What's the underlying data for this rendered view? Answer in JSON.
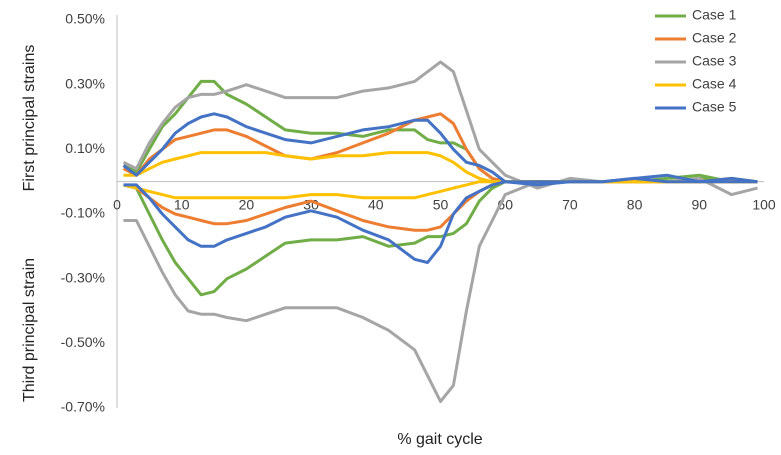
{
  "chart_data": {
    "type": "line",
    "x_label": "% gait cycle",
    "y_label_upper": "First principal strains",
    "y_label_lower": "Third principal strain",
    "x": [
      1,
      3,
      5,
      7,
      9,
      11,
      13,
      15,
      17,
      20,
      23,
      26,
      30,
      34,
      38,
      42,
      46,
      48,
      50,
      52,
      54,
      56,
      58,
      60,
      65,
      70,
      75,
      80,
      85,
      90,
      95,
      99
    ],
    "xlim": [
      0,
      100
    ],
    "xticks": [
      0,
      10,
      20,
      30,
      40,
      50,
      60,
      70,
      80,
      90,
      100
    ],
    "ylim": [
      -0.7,
      0.5
    ],
    "yticks": [
      {
        "value": 0.5,
        "label": "0.50%"
      },
      {
        "value": 0.3,
        "label": "0.30%"
      },
      {
        "value": 0.1,
        "label": "0.10%"
      },
      {
        "value": -0.1,
        "label": "-0.10%"
      },
      {
        "value": -0.3,
        "label": "-0.30%"
      },
      {
        "value": -0.5,
        "label": "-0.50%"
      },
      {
        "value": -0.7,
        "label": "-0.70%"
      }
    ],
    "legend": "top-right",
    "series": [
      {
        "name": "Case 1",
        "color": "#70ad47",
        "values": [
          0.05,
          0.03,
          0.1,
          0.17,
          0.21,
          0.26,
          0.31,
          0.31,
          0.27,
          0.24,
          0.2,
          0.16,
          0.15,
          0.15,
          0.14,
          0.16,
          0.16,
          0.13,
          0.12,
          0.12,
          0.1,
          0.04,
          0.01,
          0.0,
          0.0,
          0.0,
          0.0,
          0.0,
          0.01,
          0.02,
          0.0,
          0.0
        ],
        "values_third": [
          -0.01,
          -0.02,
          -0.1,
          -0.18,
          -0.25,
          -0.3,
          -0.35,
          -0.34,
          -0.3,
          -0.27,
          -0.23,
          -0.19,
          -0.18,
          -0.18,
          -0.17,
          -0.2,
          -0.19,
          -0.17,
          -0.17,
          -0.16,
          -0.13,
          -0.06,
          -0.02,
          0.0,
          0.0,
          0.0,
          0.0,
          0.0,
          0.0,
          0.01,
          0.0,
          0.0
        ]
      },
      {
        "name": "Case 2",
        "color": "#ed7d31",
        "values": [
          0.04,
          0.02,
          0.07,
          0.1,
          0.13,
          0.14,
          0.15,
          0.16,
          0.16,
          0.14,
          0.11,
          0.08,
          0.07,
          0.09,
          0.12,
          0.15,
          0.19,
          0.2,
          0.21,
          0.18,
          0.1,
          0.04,
          0.01,
          0.0,
          0.0,
          0.0,
          0.0,
          0.0,
          0.0,
          0.0,
          0.0,
          0.0
        ],
        "values_third": [
          -0.01,
          -0.02,
          -0.05,
          -0.08,
          -0.1,
          -0.11,
          -0.12,
          -0.13,
          -0.13,
          -0.12,
          -0.1,
          -0.08,
          -0.06,
          -0.09,
          -0.12,
          -0.14,
          -0.15,
          -0.15,
          -0.14,
          -0.1,
          -0.06,
          -0.03,
          -0.01,
          0.0,
          0.0,
          0.0,
          0.0,
          0.0,
          0.0,
          0.0,
          0.0,
          0.0
        ]
      },
      {
        "name": "Case 3",
        "color": "#a5a5a5",
        "values": [
          0.06,
          0.04,
          0.12,
          0.18,
          0.23,
          0.26,
          0.27,
          0.27,
          0.28,
          0.3,
          0.28,
          0.26,
          0.26,
          0.26,
          0.28,
          0.29,
          0.31,
          0.34,
          0.37,
          0.34,
          0.22,
          0.1,
          0.06,
          0.02,
          -0.02,
          0.01,
          0.0,
          0.0,
          0.0,
          0.01,
          -0.04,
          -0.02
        ],
        "values_third": [
          -0.12,
          -0.12,
          -0.2,
          -0.28,
          -0.35,
          -0.4,
          -0.41,
          -0.41,
          -0.42,
          -0.43,
          -0.41,
          -0.39,
          -0.39,
          -0.39,
          -0.42,
          -0.46,
          -0.52,
          -0.6,
          -0.68,
          -0.63,
          -0.4,
          -0.2,
          -0.12,
          -0.04,
          0.0,
          0.0,
          0.0,
          0.0,
          0.0,
          0.0,
          0.0,
          0.0
        ]
      },
      {
        "name": "Case 4",
        "color": "#ffc000",
        "values": [
          0.02,
          0.02,
          0.04,
          0.06,
          0.07,
          0.08,
          0.09,
          0.09,
          0.09,
          0.09,
          0.09,
          0.08,
          0.07,
          0.08,
          0.08,
          0.09,
          0.09,
          0.09,
          0.08,
          0.06,
          0.03,
          0.01,
          0.0,
          0.0,
          0.0,
          0.0,
          0.0,
          0.0,
          0.0,
          0.0,
          0.01,
          0.0
        ],
        "values_third": [
          -0.01,
          -0.02,
          -0.03,
          -0.04,
          -0.05,
          -0.05,
          -0.05,
          -0.05,
          -0.05,
          -0.05,
          -0.05,
          -0.05,
          -0.04,
          -0.04,
          -0.05,
          -0.05,
          -0.05,
          -0.04,
          -0.03,
          -0.02,
          -0.01,
          0.0,
          0.0,
          0.0,
          0.0,
          0.0,
          0.0,
          0.0,
          0.0,
          0.0,
          0.0,
          0.0
        ]
      },
      {
        "name": "Case 5",
        "color": "#4472c4",
        "values": [
          0.05,
          0.02,
          0.06,
          0.1,
          0.15,
          0.18,
          0.2,
          0.21,
          0.2,
          0.17,
          0.15,
          0.13,
          0.12,
          0.14,
          0.16,
          0.17,
          0.19,
          0.19,
          0.15,
          0.1,
          0.06,
          0.05,
          0.03,
          0.0,
          -0.01,
          0.0,
          0.0,
          0.01,
          0.02,
          0.0,
          0.01,
          0.0
        ],
        "values_third": [
          -0.01,
          -0.01,
          -0.05,
          -0.1,
          -0.14,
          -0.18,
          -0.2,
          -0.2,
          -0.18,
          -0.16,
          -0.14,
          -0.11,
          -0.09,
          -0.11,
          -0.15,
          -0.18,
          -0.24,
          -0.25,
          -0.2,
          -0.1,
          -0.05,
          -0.03,
          -0.01,
          0.0,
          0.0,
          0.0,
          0.0,
          0.01,
          0.0,
          0.0,
          0.0,
          0.0
        ]
      }
    ]
  }
}
